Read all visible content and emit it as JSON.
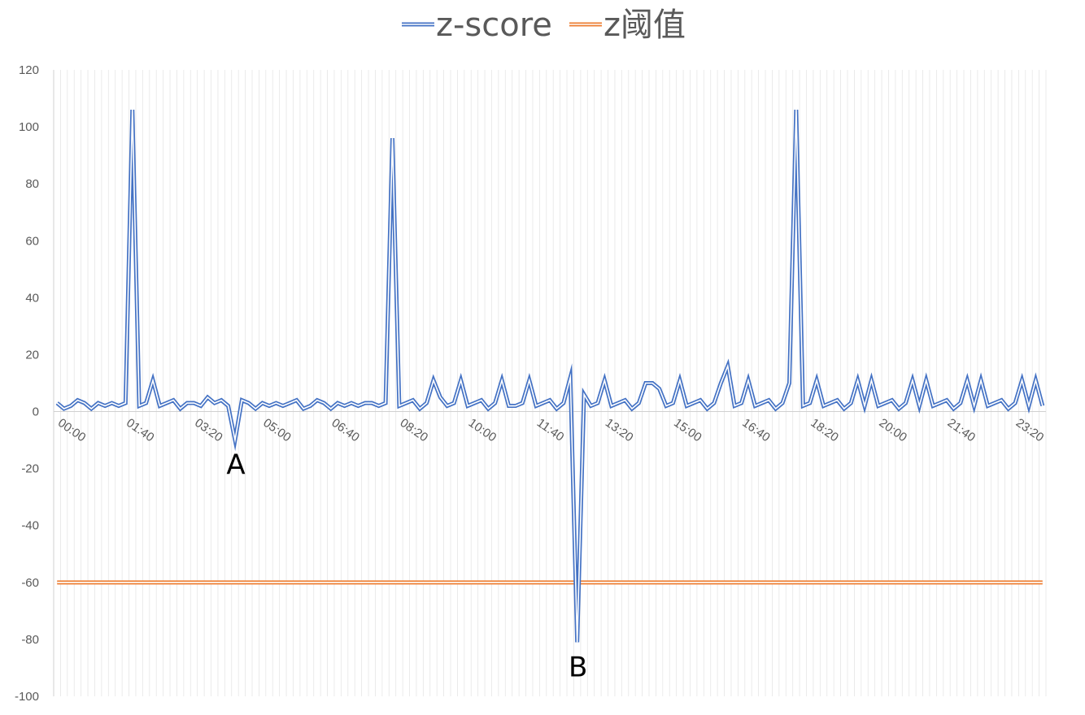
{
  "chart_data": {
    "type": "line",
    "title": "",
    "xlabel": "",
    "ylabel": "",
    "ylim": [
      -100,
      120
    ],
    "y_ticks": [
      -100,
      -80,
      -60,
      -40,
      -20,
      0,
      20,
      40,
      60,
      80,
      100,
      120
    ],
    "x_tick_labels": [
      "00:00",
      "01:40",
      "03:20",
      "05:00",
      "06:40",
      "08:20",
      "10:00",
      "11:40",
      "13:20",
      "15:00",
      "16:40",
      "18:20",
      "20:00",
      "21:40",
      "23:20"
    ],
    "x_interval_minutes": 10,
    "grid": "vertical",
    "legend_position": "top",
    "series": [
      {
        "name": "z-score",
        "color": "#4472C4",
        "values": [
          3,
          1,
          2,
          4,
          3,
          1,
          3,
          2,
          3,
          2,
          3,
          106,
          2,
          3,
          11,
          2,
          3,
          4,
          1,
          3,
          3,
          2,
          5,
          3,
          4,
          2,
          -10,
          4,
          3,
          1,
          3,
          2,
          3,
          2,
          3,
          4,
          1,
          2,
          4,
          3,
          1,
          3,
          2,
          3,
          2,
          3,
          3,
          2,
          3,
          96,
          2,
          3,
          4,
          1,
          3,
          11,
          5,
          2,
          3,
          11,
          2,
          3,
          4,
          1,
          3,
          11,
          2,
          2,
          3,
          11,
          2,
          3,
          4,
          1,
          3,
          12,
          -81,
          6,
          2,
          3,
          11,
          2,
          3,
          4,
          1,
          3,
          10,
          10,
          8,
          2,
          3,
          11,
          2,
          3,
          4,
          1,
          3,
          10,
          16,
          2,
          3,
          11,
          2,
          3,
          4,
          1,
          3,
          10,
          106,
          2,
          3,
          11,
          2,
          3,
          4,
          1,
          3,
          11,
          2,
          11,
          2,
          3,
          4,
          1,
          3,
          11,
          2,
          11,
          2,
          3,
          4,
          1,
          3,
          11,
          2,
          11,
          2,
          3,
          4,
          1,
          3,
          11,
          2,
          11,
          2
        ],
        "double_line": true
      },
      {
        "name": "z阈值",
        "color": "#ED7D31",
        "values": [
          -60
        ],
        "constant": true,
        "double_line": true
      }
    ],
    "annotations": [
      {
        "text": "A",
        "x_index": 26
      },
      {
        "text": "B",
        "x_index": 76
      }
    ]
  }
}
